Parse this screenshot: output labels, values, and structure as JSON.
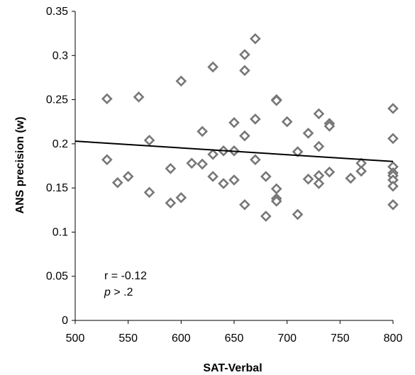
{
  "chart_data": {
    "type": "scatter",
    "xlabel": "SAT-Verbal",
    "ylabel": "ANS precision (w)",
    "xlim": [
      500,
      800
    ],
    "ylim": [
      0,
      0.35
    ],
    "x_ticks": [
      "500",
      "550",
      "600",
      "650",
      "700",
      "750",
      "800"
    ],
    "y_ticks": [
      "0",
      "0.05",
      "0.1",
      "0.15",
      "0.2",
      "0.25",
      "0.3",
      "0.35"
    ],
    "grid": false,
    "marker": "diamond",
    "marker_color": "#777777",
    "trendline": {
      "x1": 500,
      "y1": 0.203,
      "x2": 800,
      "y2": 0.18,
      "color": "#000000"
    },
    "annotations": {
      "r_text": "r = -0.12",
      "p_symbol": "p",
      "p_rest": " > .2"
    },
    "points": [
      {
        "x": 530,
        "y": 0.251
      },
      {
        "x": 530,
        "y": 0.182
      },
      {
        "x": 540,
        "y": 0.156
      },
      {
        "x": 550,
        "y": 0.163
      },
      {
        "x": 560,
        "y": 0.253
      },
      {
        "x": 570,
        "y": 0.204
      },
      {
        "x": 570,
        "y": 0.145
      },
      {
        "x": 590,
        "y": 0.172
      },
      {
        "x": 590,
        "y": 0.133
      },
      {
        "x": 600,
        "y": 0.271
      },
      {
        "x": 600,
        "y": 0.139
      },
      {
        "x": 610,
        "y": 0.178
      },
      {
        "x": 620,
        "y": 0.214
      },
      {
        "x": 620,
        "y": 0.177
      },
      {
        "x": 630,
        "y": 0.287
      },
      {
        "x": 630,
        "y": 0.188
      },
      {
        "x": 630,
        "y": 0.163
      },
      {
        "x": 640,
        "y": 0.192
      },
      {
        "x": 640,
        "y": 0.155
      },
      {
        "x": 650,
        "y": 0.224
      },
      {
        "x": 650,
        "y": 0.192
      },
      {
        "x": 650,
        "y": 0.159
      },
      {
        "x": 660,
        "y": 0.301
      },
      {
        "x": 660,
        "y": 0.283
      },
      {
        "x": 660,
        "y": 0.209
      },
      {
        "x": 660,
        "y": 0.131
      },
      {
        "x": 670,
        "y": 0.319
      },
      {
        "x": 670,
        "y": 0.228
      },
      {
        "x": 670,
        "y": 0.182
      },
      {
        "x": 680,
        "y": 0.163
      },
      {
        "x": 680,
        "y": 0.118
      },
      {
        "x": 690,
        "y": 0.25
      },
      {
        "x": 690,
        "y": 0.249
      },
      {
        "x": 690,
        "y": 0.149
      },
      {
        "x": 690,
        "y": 0.138
      },
      {
        "x": 690,
        "y": 0.135
      },
      {
        "x": 700,
        "y": 0.225
      },
      {
        "x": 710,
        "y": 0.191
      },
      {
        "x": 710,
        "y": 0.12
      },
      {
        "x": 720,
        "y": 0.212
      },
      {
        "x": 720,
        "y": 0.16
      },
      {
        "x": 730,
        "y": 0.234
      },
      {
        "x": 730,
        "y": 0.197
      },
      {
        "x": 730,
        "y": 0.164
      },
      {
        "x": 730,
        "y": 0.155
      },
      {
        "x": 740,
        "y": 0.223
      },
      {
        "x": 740,
        "y": 0.22
      },
      {
        "x": 740,
        "y": 0.168
      },
      {
        "x": 760,
        "y": 0.161
      },
      {
        "x": 770,
        "y": 0.178
      },
      {
        "x": 770,
        "y": 0.169
      },
      {
        "x": 800,
        "y": 0.24
      },
      {
        "x": 800,
        "y": 0.206
      },
      {
        "x": 800,
        "y": 0.174
      },
      {
        "x": 800,
        "y": 0.167
      },
      {
        "x": 800,
        "y": 0.164
      },
      {
        "x": 800,
        "y": 0.159
      },
      {
        "x": 800,
        "y": 0.152
      },
      {
        "x": 800,
        "y": 0.131
      }
    ]
  }
}
